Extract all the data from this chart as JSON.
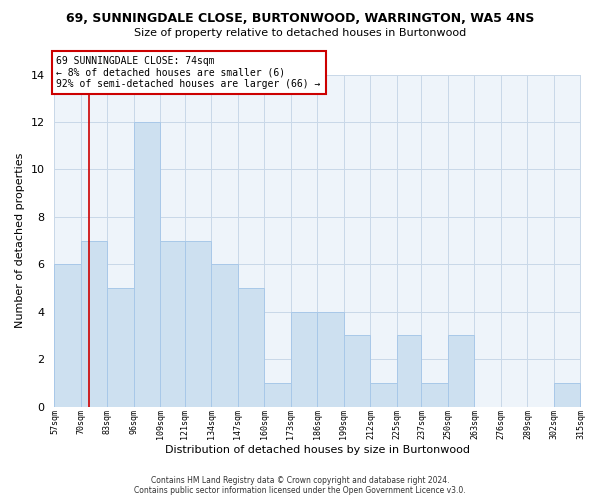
{
  "title": "69, SUNNINGDALE CLOSE, BURTONWOOD, WARRINGTON, WA5 4NS",
  "subtitle": "Size of property relative to detached houses in Burtonwood",
  "xlabel": "Distribution of detached houses by size in Burtonwood",
  "ylabel": "Number of detached properties",
  "bar_color": "#cde0f0",
  "bar_edge_color": "#a8c8e8",
  "bin_edges": [
    57,
    70,
    83,
    96,
    109,
    121,
    134,
    147,
    160,
    173,
    186,
    199,
    212,
    225,
    237,
    250,
    263,
    276,
    289,
    302,
    315
  ],
  "counts": [
    6,
    7,
    5,
    12,
    7,
    7,
    6,
    5,
    1,
    4,
    4,
    3,
    1,
    3,
    1,
    3,
    0,
    0,
    0,
    1
  ],
  "tick_labels": [
    "57sqm",
    "70sqm",
    "83sqm",
    "96sqm",
    "109sqm",
    "121sqm",
    "134sqm",
    "147sqm",
    "160sqm",
    "173sqm",
    "186sqm",
    "199sqm",
    "212sqm",
    "225sqm",
    "237sqm",
    "250sqm",
    "263sqm",
    "276sqm",
    "289sqm",
    "302sqm",
    "315sqm"
  ],
  "property_size": 74,
  "vline_color": "#cc0000",
  "annotation_line1": "69 SUNNINGDALE CLOSE: 74sqm",
  "annotation_line2": "← 8% of detached houses are smaller (6)",
  "annotation_line3": "92% of semi-detached houses are larger (66) →",
  "annotation_box_color": "#ffffff",
  "annotation_box_edge": "#cc0000",
  "ylim": [
    0,
    14
  ],
  "yticks": [
    0,
    2,
    4,
    6,
    8,
    10,
    12,
    14
  ],
  "footer_line1": "Contains HM Land Registry data © Crown copyright and database right 2024.",
  "footer_line2": "Contains public sector information licensed under the Open Government Licence v3.0.",
  "background_color": "#ffffff",
  "grid_color": "#c8d8e8",
  "plot_bg_color": "#eef4fa"
}
